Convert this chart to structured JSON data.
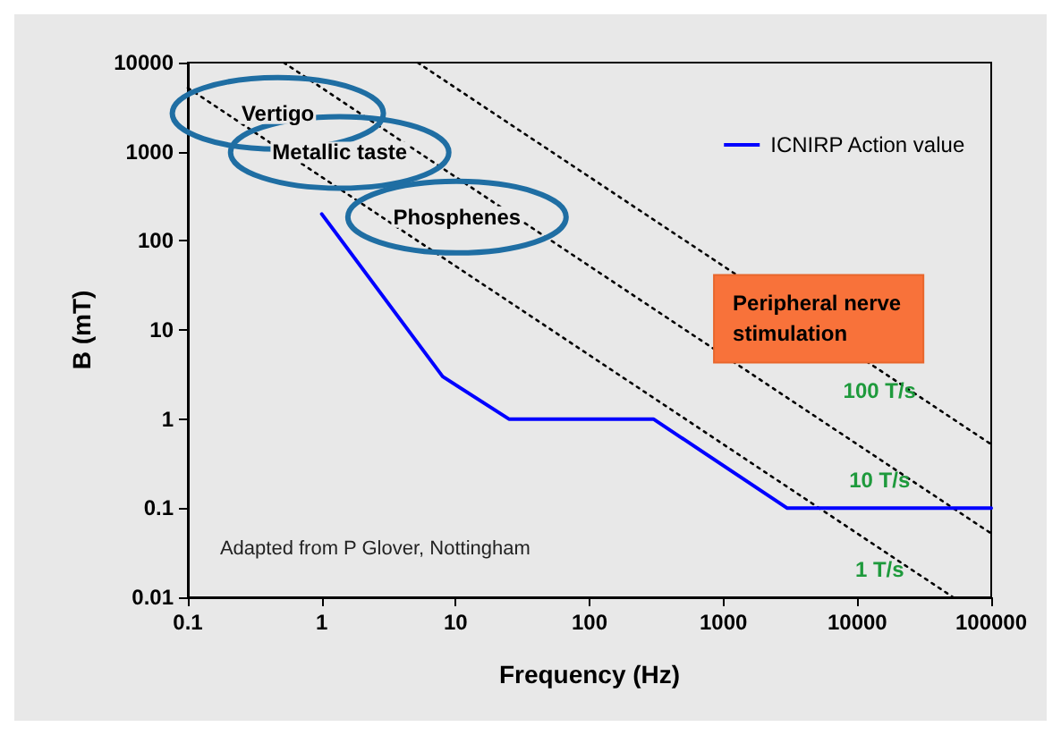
{
  "chart_data": {
    "type": "line",
    "xlabel": "Frequency (Hz)",
    "ylabel": "B (mT)",
    "log": "xy",
    "grid": false,
    "legend": "top right",
    "marker": "none",
    "xlim": [
      0.1,
      100000
    ],
    "xticks": [
      0.1,
      1,
      10,
      100,
      1000,
      10000,
      100000
    ],
    "ylim": [
      0.01,
      10000
    ],
    "yticks": [
      0.01,
      0.1,
      1,
      10,
      100,
      1000,
      10000
    ],
    "series": [
      {
        "name": "ICNIRP Action value",
        "color": "#0000ff",
        "line_style": "solid",
        "x": [
          1,
          8,
          25,
          300,
          3000,
          100000
        ],
        "values": [
          200,
          3,
          1,
          1,
          0.1,
          0.1
        ]
      },
      {
        "name": "1 T/s",
        "color": "#000000",
        "line_style": "dotted",
        "x": [
          0.1,
          52000
        ],
        "values": [
          5200,
          0.01
        ]
      },
      {
        "name": "10 T/s",
        "color": "#000000",
        "line_style": "dotted",
        "x": [
          0.52,
          100000
        ],
        "values": [
          10000,
          0.052
        ]
      },
      {
        "name": "100 T/s",
        "color": "#000000",
        "line_style": "dotted",
        "x": [
          5.2,
          100000
        ],
        "values": [
          10000,
          0.52
        ]
      }
    ],
    "annotations": [
      "Vertigo",
      "Metallic taste",
      "Phosphenes",
      "Peripheral nerve\nstimulation",
      "Adapted from P Glover, Nottingham"
    ]
  }
}
